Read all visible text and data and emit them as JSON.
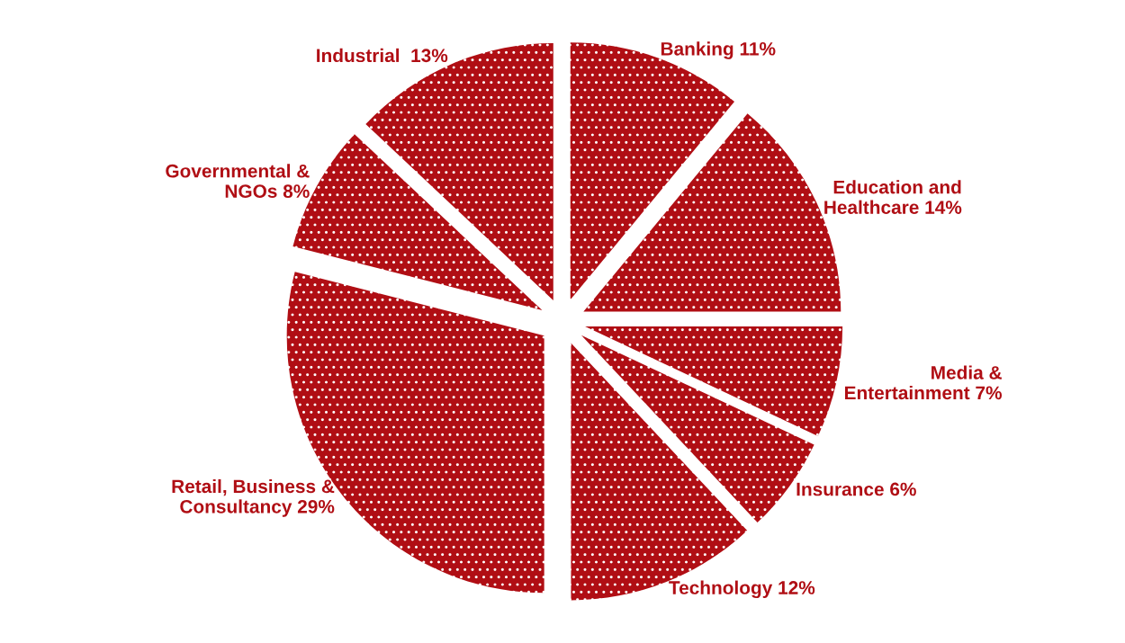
{
  "chart_data": {
    "type": "pie",
    "categories": [
      "Banking",
      "Education and\nHealthcare",
      "Media &\nEntertainment",
      "Insurance",
      "Technology",
      "Retail, Business &\nConsultancy",
      "Governmental &\nNGOs",
      "Industrial "
    ],
    "values": [
      11,
      14,
      7,
      6,
      12,
      29,
      8,
      13
    ],
    "value_labels": [
      "11%",
      "14%",
      "7%",
      "6%",
      "12%",
      "29%",
      "8%",
      "13%"
    ],
    "colors": [
      "#b00e14",
      "#b00e14",
      "#b00e14",
      "#b00e14",
      "#b00e14",
      "#b00e14",
      "#b00e14",
      "#b00e14"
    ],
    "legend": false
  }
}
